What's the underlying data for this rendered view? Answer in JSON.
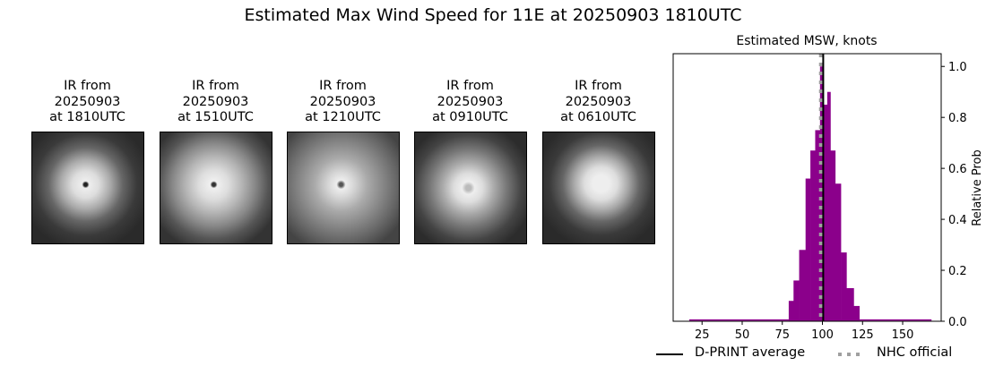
{
  "title": "Estimated Max Wind Speed for 11E at 20250903 1810UTC",
  "panels": [
    {
      "line1": "IR from",
      "line2": "20250903",
      "line3": "at 1810UTC"
    },
    {
      "line1": "IR from",
      "line2": "20250903",
      "line3": "at 1510UTC"
    },
    {
      "line1": "IR from",
      "line2": "20250903",
      "line3": "at 1210UTC"
    },
    {
      "line1": "IR from",
      "line2": "20250903",
      "line3": "at 0910UTC"
    },
    {
      "line1": "IR from",
      "line2": "20250903",
      "line3": "at 0610UTC"
    }
  ],
  "legend": {
    "dprint": "D-PRINT average",
    "nhc": "NHC official"
  },
  "chart_data": {
    "type": "bar",
    "title": "Estimated MSW, knots",
    "xlabel": "",
    "ylabel": "Relative Prob",
    "xlim": [
      7,
      174
    ],
    "ylim": [
      0,
      1.05
    ],
    "xticks": [
      25,
      50,
      75,
      100,
      125,
      150
    ],
    "yticks": [
      0.0,
      0.2,
      0.4,
      0.6,
      0.8,
      1.0
    ],
    "ytick_labels": [
      "0.0",
      "0.2",
      "0.4",
      "0.6",
      "0.8",
      "1.0"
    ],
    "y_axis_side": "right",
    "grid": false,
    "bin_edges": [
      79,
      82,
      85.5,
      89.5,
      92.5,
      95.5,
      98.5,
      100.5,
      103,
      105,
      108,
      111.5,
      115,
      119.5,
      123
    ],
    "values": [
      0.08,
      0.16,
      0.28,
      0.56,
      0.67,
      0.75,
      1.0,
      0.85,
      0.9,
      0.67,
      0.54,
      0.27,
      0.13,
      0.06
    ],
    "tail_range": [
      17,
      168
    ],
    "tail_value": 0.004,
    "bar_color": "#8b008b",
    "dprint_average": 100.5,
    "nhc_official": 99,
    "dprint_color": "#000000",
    "nhc_color": "#a0a0a0",
    "legend_position": "bottom"
  }
}
